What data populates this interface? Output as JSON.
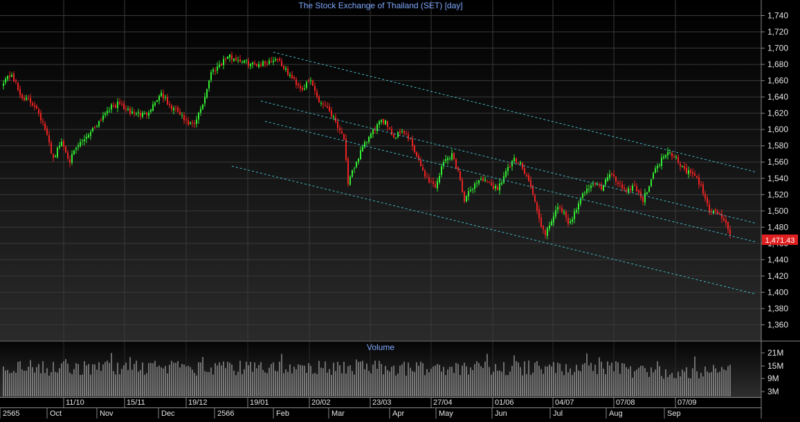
{
  "chart_data": {
    "type": "candlestick",
    "title": "The Stock Exchange of Thailand (SET) [day]",
    "volume_title": "Volume",
    "last_price": "1,471.43",
    "price_axis": {
      "min": 1340,
      "max": 1750,
      "ticks": [
        "1,360",
        "1,380",
        "1,400",
        "1,420",
        "1,440",
        "1,460",
        "1,480",
        "1,500",
        "1,520",
        "1,540",
        "1,560",
        "1,580",
        "1,600",
        "1,620",
        "1,640",
        "1,660",
        "1,680",
        "1,700",
        "1,720",
        "1,740"
      ]
    },
    "volume_axis": {
      "ticks": [
        "3M",
        "9M",
        "15M",
        "21M"
      ]
    },
    "date_ticks": [
      "11/10",
      "15/11",
      "19/12",
      "19/01",
      "20/02",
      "23/03",
      "27/04",
      "01/06",
      "04/07",
      "07/08",
      "07/09"
    ],
    "month_labels": [
      "2565",
      "Oct",
      "Nov",
      "Dec",
      "2566",
      "Feb",
      "Mar",
      "Apr",
      "May",
      "Jun",
      "Jul",
      "Aug",
      "Sep"
    ],
    "close_path": [
      {
        "i": 0,
        "v": 1660
      },
      {
        "i": 4,
        "v": 1668
      },
      {
        "i": 8,
        "v": 1642
      },
      {
        "i": 12,
        "v": 1635
      },
      {
        "i": 16,
        "v": 1628
      },
      {
        "i": 20,
        "v": 1600
      },
      {
        "i": 24,
        "v": 1565
      },
      {
        "i": 28,
        "v": 1585
      },
      {
        "i": 32,
        "v": 1562
      },
      {
        "i": 36,
        "v": 1580
      },
      {
        "i": 40,
        "v": 1592
      },
      {
        "i": 46,
        "v": 1610
      },
      {
        "i": 50,
        "v": 1625
      },
      {
        "i": 56,
        "v": 1632
      },
      {
        "i": 60,
        "v": 1622
      },
      {
        "i": 64,
        "v": 1620
      },
      {
        "i": 68,
        "v": 1618
      },
      {
        "i": 72,
        "v": 1630
      },
      {
        "i": 76,
        "v": 1645
      },
      {
        "i": 80,
        "v": 1628
      },
      {
        "i": 84,
        "v": 1622
      },
      {
        "i": 88,
        "v": 1608
      },
      {
        "i": 92,
        "v": 1605
      },
      {
        "i": 96,
        "v": 1632
      },
      {
        "i": 100,
        "v": 1670
      },
      {
        "i": 104,
        "v": 1680
      },
      {
        "i": 108,
        "v": 1690
      },
      {
        "i": 114,
        "v": 1685
      },
      {
        "i": 120,
        "v": 1680
      },
      {
        "i": 126,
        "v": 1682
      },
      {
        "i": 132,
        "v": 1688
      },
      {
        "i": 136,
        "v": 1672
      },
      {
        "i": 140,
        "v": 1660
      },
      {
        "i": 144,
        "v": 1650
      },
      {
        "i": 148,
        "v": 1660
      },
      {
        "i": 152,
        "v": 1635
      },
      {
        "i": 156,
        "v": 1628
      },
      {
        "i": 160,
        "v": 1610
      },
      {
        "i": 164,
        "v": 1590
      },
      {
        "i": 166,
        "v": 1530
      },
      {
        "i": 168,
        "v": 1548
      },
      {
        "i": 172,
        "v": 1572
      },
      {
        "i": 176,
        "v": 1590
      },
      {
        "i": 180,
        "v": 1605
      },
      {
        "i": 184,
        "v": 1612
      },
      {
        "i": 188,
        "v": 1590
      },
      {
        "i": 192,
        "v": 1600
      },
      {
        "i": 196,
        "v": 1585
      },
      {
        "i": 200,
        "v": 1560
      },
      {
        "i": 204,
        "v": 1540
      },
      {
        "i": 208,
        "v": 1530
      },
      {
        "i": 212,
        "v": 1560
      },
      {
        "i": 216,
        "v": 1570
      },
      {
        "i": 220,
        "v": 1540
      },
      {
        "i": 222,
        "v": 1512
      },
      {
        "i": 226,
        "v": 1530
      },
      {
        "i": 230,
        "v": 1540
      },
      {
        "i": 234,
        "v": 1532
      },
      {
        "i": 238,
        "v": 1528
      },
      {
        "i": 242,
        "v": 1548
      },
      {
        "i": 246,
        "v": 1562
      },
      {
        "i": 250,
        "v": 1555
      },
      {
        "i": 254,
        "v": 1530
      },
      {
        "i": 258,
        "v": 1490
      },
      {
        "i": 261,
        "v": 1468
      },
      {
        "i": 264,
        "v": 1490
      },
      {
        "i": 268,
        "v": 1505
      },
      {
        "i": 272,
        "v": 1485
      },
      {
        "i": 276,
        "v": 1500
      },
      {
        "i": 280,
        "v": 1525
      },
      {
        "i": 284,
        "v": 1535
      },
      {
        "i": 288,
        "v": 1528
      },
      {
        "i": 292,
        "v": 1545
      },
      {
        "i": 296,
        "v": 1535
      },
      {
        "i": 300,
        "v": 1525
      },
      {
        "i": 304,
        "v": 1532
      },
      {
        "i": 308,
        "v": 1512
      },
      {
        "i": 312,
        "v": 1540
      },
      {
        "i": 316,
        "v": 1560
      },
      {
        "i": 320,
        "v": 1575
      },
      {
        "i": 324,
        "v": 1565
      },
      {
        "i": 328,
        "v": 1550
      },
      {
        "i": 332,
        "v": 1545
      },
      {
        "i": 336,
        "v": 1530
      },
      {
        "i": 340,
        "v": 1500
      },
      {
        "i": 344,
        "v": 1498
      },
      {
        "i": 348,
        "v": 1485
      },
      {
        "i": 350,
        "v": 1471
      }
    ],
    "channel_lines": [
      {
        "name": "upper",
        "x1": 130,
        "y1": 1695,
        "x2": 362,
        "y2": 1548
      },
      {
        "name": "mid-upper",
        "x1": 124,
        "y1": 1635,
        "x2": 362,
        "y2": 1485
      },
      {
        "name": "mid-lower",
        "x1": 126,
        "y1": 1610,
        "x2": 362,
        "y2": 1462
      },
      {
        "name": "lower",
        "x1": 110,
        "y1": 1555,
        "x2": 362,
        "y2": 1398
      }
    ],
    "colors": {
      "up": "#33ee33",
      "down": "#ee2222",
      "volume": "#c8c8c8",
      "channel": "#3fb8c8",
      "title": "#7fa9ff",
      "last_price_bg": "#e02020"
    }
  }
}
